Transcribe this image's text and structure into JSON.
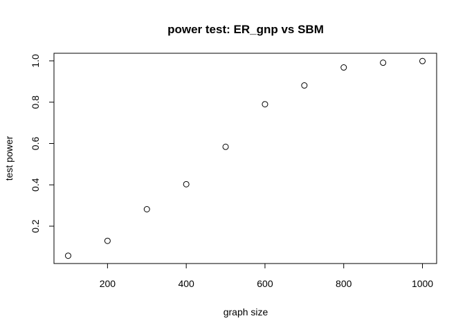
{
  "chart_data": {
    "type": "scatter",
    "title": "power test: ER_gnp vs SBM",
    "xlabel": "graph size",
    "ylabel": "test power",
    "x": [
      100,
      200,
      300,
      400,
      500,
      600,
      700,
      800,
      900,
      1000
    ],
    "y": [
      0.057,
      0.129,
      0.282,
      0.403,
      0.584,
      0.79,
      0.881,
      0.968,
      0.991,
      0.999
    ],
    "xticks": [
      200,
      400,
      600,
      800,
      1000
    ],
    "yticks": [
      0.2,
      0.4,
      0.6,
      0.8,
      1.0
    ],
    "xtick_labels": [
      "200",
      "400",
      "600",
      "800",
      "1000"
    ],
    "ytick_labels": [
      "0.2",
      "0.4",
      "0.6",
      "0.8",
      "1.0"
    ],
    "xlim": [
      64,
      1036
    ],
    "ylim": [
      0.0193,
      1.0367
    ],
    "marker": "open-circle",
    "grid": false,
    "legend": "none",
    "colors": {
      "point_stroke": "#000000",
      "axis": "#000000",
      "background": "#ffffff"
    }
  }
}
